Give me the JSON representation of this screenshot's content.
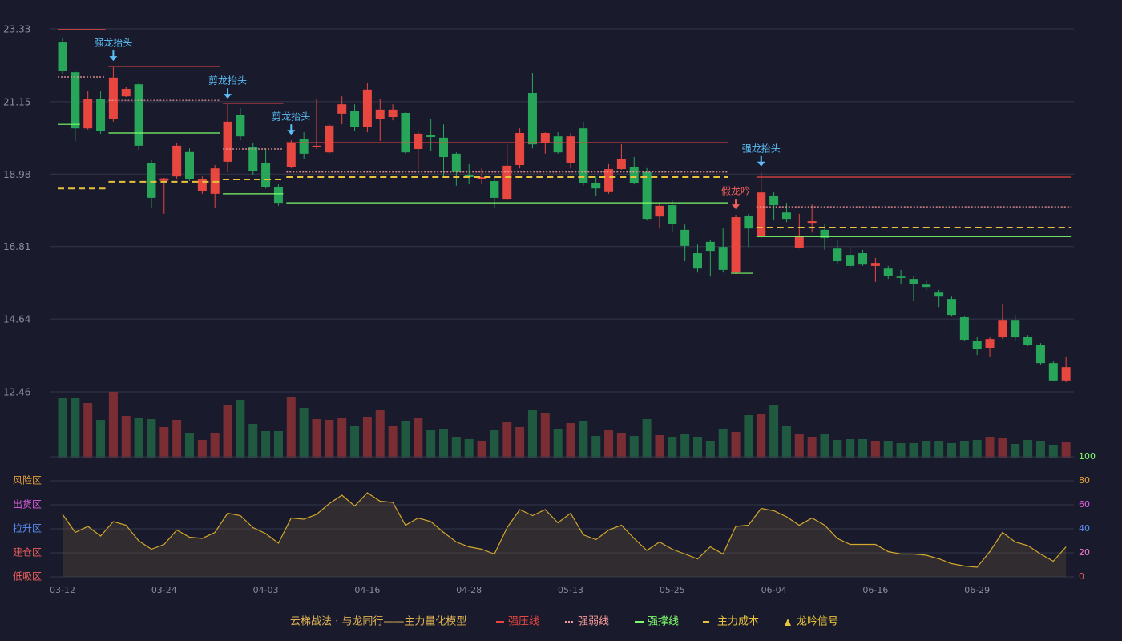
{
  "chart_data": [
    {
      "type": "candlestick",
      "categories": [
        "03-12",
        null,
        null,
        null,
        null,
        null,
        null,
        null,
        "03-24",
        null,
        null,
        null,
        null,
        null,
        null,
        null,
        "04-03",
        null,
        null,
        null,
        null,
        null,
        null,
        null,
        "04-16",
        null,
        null,
        null,
        null,
        null,
        null,
        null,
        "04-28",
        null,
        null,
        null,
        null,
        null,
        null,
        null,
        "05-13",
        null,
        null,
        null,
        null,
        null,
        null,
        null,
        "05-25",
        null,
        null,
        null,
        null,
        null,
        null,
        null,
        "06-04",
        null,
        null,
        null,
        null,
        null,
        null,
        null,
        "06-16",
        null,
        null,
        null,
        null,
        null,
        null,
        null,
        "06-29",
        null,
        null,
        null,
        null,
        null,
        null,
        null
      ],
      "open": [
        22.92,
        22.03,
        20.35,
        21.22,
        20.62,
        21.31,
        21.67,
        19.3,
        18.78,
        18.91,
        19.64,
        18.48,
        18.39,
        19.35,
        20.76,
        19.78,
        19.3,
        18.58,
        19.2,
        20.02,
        19.78,
        19.63,
        20.79,
        20.86,
        20.38,
        20.64,
        20.69,
        20.81,
        19.73,
        20.16,
        20.07,
        19.59,
        18.94,
        18.82,
        18.77,
        18.24,
        19.25,
        21.41,
        19.92,
        20.11,
        19.32,
        20.35,
        18.72,
        18.44,
        19.13,
        19.2,
        19.04,
        17.71,
        18.05,
        17.31,
        16.61,
        16.95,
        16.8,
        16.03,
        17.74,
        17.11,
        18.34,
        17.83,
        16.78,
        17.52,
        17.31,
        16.75,
        16.56,
        16.61,
        16.23,
        16.15,
        15.91,
        15.84,
        15.67,
        15.43,
        15.24,
        14.69,
        13.99,
        13.78,
        14.09,
        14.59,
        14.11,
        13.87,
        13.32,
        12.8
      ],
      "high": [
        23.07,
        22.05,
        21.48,
        21.48,
        22.2,
        21.6,
        21.7,
        19.4,
        18.87,
        19.92,
        19.75,
        18.91,
        19.25,
        21.07,
        20.95,
        19.92,
        19.75,
        18.67,
        19.99,
        20.23,
        21.24,
        20.47,
        21.31,
        21.07,
        21.7,
        21.22,
        21.07,
        20.83,
        20.28,
        20.64,
        20.47,
        19.63,
        19.28,
        19.15,
        18.91,
        19.87,
        20.35,
        22.01,
        20.23,
        20.23,
        20.21,
        20.55,
        18.91,
        19.28,
        19.87,
        19.49,
        19.16,
        18.12,
        18.19,
        17.47,
        16.87,
        17.0,
        17.35,
        17.76,
        17.79,
        19.04,
        18.43,
        18.12,
        17.79,
        18.07,
        17.47,
        16.99,
        16.8,
        16.71,
        16.47,
        16.23,
        16.11,
        15.91,
        15.79,
        15.51,
        15.31,
        14.74,
        14.11,
        14.11,
        15.07,
        14.76,
        14.16,
        13.92,
        13.37,
        13.51
      ],
      "low": [
        21.99,
        19.97,
        20.31,
        20.19,
        20.55,
        21.29,
        19.71,
        17.95,
        17.79,
        18.82,
        18.77,
        18.39,
        17.98,
        19.04,
        19.99,
        18.96,
        18.55,
        18.03,
        19.15,
        19.44,
        19.73,
        19.59,
        20.47,
        20.26,
        20.23,
        19.97,
        20.59,
        19.59,
        19.11,
        19.66,
        18.91,
        18.63,
        18.67,
        18.67,
        17.95,
        18.19,
        19.15,
        19.75,
        19.59,
        19.59,
        19.15,
        18.63,
        18.31,
        18.39,
        19.11,
        18.67,
        17.59,
        17.35,
        17.23,
        16.37,
        16.03,
        15.91,
        16.03,
        15.99,
        16.8,
        17.07,
        17.59,
        17.54,
        16.75,
        17.23,
        16.71,
        16.27,
        16.15,
        16.23,
        15.75,
        15.84,
        15.67,
        15.17,
        15.51,
        15.0,
        14.71,
        13.97,
        13.56,
        13.52,
        14.04,
        13.99,
        13.83,
        13.27,
        12.77,
        12.75
      ],
      "close": [
        22.08,
        20.35,
        21.22,
        20.26,
        21.87,
        21.53,
        19.83,
        18.27,
        18.85,
        19.83,
        18.84,
        18.82,
        19.15,
        20.55,
        20.11,
        19.06,
        18.6,
        18.12,
        19.92,
        19.59,
        19.83,
        20.43,
        21.07,
        20.38,
        21.51,
        20.91,
        20.91,
        19.63,
        20.19,
        20.09,
        19.49,
        19.04,
        18.89,
        18.89,
        18.27,
        19.23,
        20.21,
        19.87,
        20.21,
        19.63,
        20.11,
        18.72,
        18.55,
        19.13,
        19.44,
        18.72,
        17.64,
        18.03,
        17.5,
        16.83,
        16.15,
        16.68,
        16.11,
        17.69,
        17.35,
        18.43,
        18.05,
        17.64,
        17.14,
        17.57,
        17.07,
        16.37,
        16.23,
        16.27,
        16.32,
        15.94,
        15.87,
        15.7,
        15.6,
        15.31,
        14.76,
        14.02,
        13.75,
        14.04,
        14.59,
        14.09,
        13.87,
        13.32,
        12.8,
        13.2
      ],
      "up_color": "#e8473f",
      "down_color": "#27a65a",
      "ylim": [
        12.46,
        23.33
      ],
      "yticks": [
        12.46,
        14.64,
        16.81,
        18.98,
        21.15,
        23.33
      ],
      "grid": true,
      "series": [
        {
          "name": "强压线",
          "color": "#e8473f",
          "dash": "solid",
          "segments": [
            {
              "start": 0,
              "end": 3,
              "value": 23.31
            },
            {
              "start": 4,
              "end": 12,
              "value": 22.2
            },
            {
              "start": 13,
              "end": 17,
              "value": 21.1
            },
            {
              "start": 18,
              "end": 52,
              "value": 19.92
            },
            {
              "start": 55,
              "end": 79,
              "value": 18.89
            }
          ]
        },
        {
          "name": "强弱线",
          "color": "#f59a9a",
          "dash": "dotted",
          "segments": [
            {
              "start": 0,
              "end": 3,
              "value": 21.89
            },
            {
              "start": 4,
              "end": 12,
              "value": 21.19
            },
            {
              "start": 13,
              "end": 17,
              "value": 19.73
            },
            {
              "start": 18,
              "end": 52,
              "value": 19.04
            },
            {
              "start": 55,
              "end": 79,
              "value": 18.0
            }
          ]
        },
        {
          "name": "强撑线",
          "color": "#7cfc6a",
          "dash": "solid",
          "segments": [
            {
              "start": 0,
              "end": 1,
              "value": 20.47
            },
            {
              "start": 4,
              "end": 12,
              "value": 20.21
            },
            {
              "start": 13,
              "end": 17,
              "value": 18.39
            },
            {
              "start": 18,
              "end": 52,
              "value": 18.12
            },
            {
              "start": 53,
              "end": 54,
              "value": 16.01
            },
            {
              "start": 55,
              "end": 79,
              "value": 17.11
            }
          ]
        },
        {
          "name": "主力成本",
          "color": "#e8c23a",
          "dash": "dashed",
          "segments": [
            {
              "start": 0,
              "end": 3,
              "value": 18.55
            },
            {
              "start": 4,
              "end": 12,
              "value": 18.75
            },
            {
              "start": 13,
              "end": 17,
              "value": 18.82
            },
            {
              "start": 18,
              "end": 52,
              "value": 18.89
            },
            {
              "start": 55,
              "end": 79,
              "value": 17.38
            }
          ]
        }
      ],
      "annotations": [
        {
          "index": 4,
          "label": "强龙抬头",
          "color": "#5bc0f8"
        },
        {
          "index": 13,
          "label": "剪龙抬头",
          "color": "#5bc0f8"
        },
        {
          "index": 18,
          "label": "剪龙抬头",
          "color": "#5bc0f8"
        },
        {
          "index": 53,
          "label": "假龙吟",
          "color": "#f0605a"
        },
        {
          "index": 55,
          "label": "强龙抬头",
          "color": "#5bc0f8"
        }
      ],
      "legend_title": "云梯战法 · 与龙同行——主力量化模型",
      "legend_title_color": "#e0b454",
      "signal_legend": "龙吟信号",
      "signal_color": "#e8c23a"
    },
    {
      "type": "bar",
      "values": [
        74,
        74,
        68,
        47,
        82,
        52,
        49,
        48,
        38,
        47,
        30,
        22,
        30,
        65,
        72,
        42,
        33,
        33,
        75,
        62,
        48,
        47,
        49,
        39,
        51,
        59,
        39,
        46,
        49,
        34,
        36,
        26,
        23,
        21,
        34,
        44,
        38,
        59,
        56,
        36,
        43,
        45,
        27,
        34,
        30,
        27,
        48,
        28,
        26,
        29,
        25,
        20,
        35,
        32,
        53,
        54,
        65,
        39,
        29,
        26,
        29,
        22,
        23,
        23,
        20,
        21,
        18,
        18,
        21,
        21,
        18,
        21,
        22,
        25,
        24,
        17,
        22,
        21,
        16,
        19
      ],
      "up_color": "#7a2d33",
      "down_color": "#1f5a40",
      "ylim": [
        0,
        82
      ]
    },
    {
      "type": "area",
      "values": [
        52,
        37,
        42,
        34,
        46,
        43,
        30,
        23,
        27,
        39,
        33,
        32,
        37,
        53,
        51,
        41,
        36,
        28,
        49,
        48,
        52,
        61,
        68,
        59,
        70,
        63,
        62,
        43,
        49,
        46,
        37,
        29,
        25,
        23,
        19,
        41,
        56,
        51,
        56,
        45,
        53,
        35,
        31,
        39,
        43,
        32,
        22,
        29,
        23,
        19,
        15,
        25,
        19,
        42,
        43,
        57,
        55,
        50,
        43,
        49,
        43,
        32,
        27,
        27,
        27,
        21,
        19,
        19,
        18,
        15,
        11,
        9,
        8,
        21,
        37,
        29,
        26,
        19,
        13,
        25
      ],
      "color": "#d4a82a",
      "fill": "rgba(120,100,60,0.25)",
      "ylim": [
        0,
        100
      ],
      "yticks": [
        0,
        20,
        40,
        60,
        80,
        100
      ],
      "tick_colors": [
        "#f0605a",
        "#f07ad0",
        "#5b8ff8",
        "#e060e0",
        "#e8a23a",
        "#7cfc6a"
      ],
      "zone_labels": [
        "低吸区",
        "建仓区",
        "拉升区",
        "出货区",
        "风险区"
      ],
      "zone_colors": [
        "#f0605a",
        "#f0605a",
        "#5b8ff8",
        "#e060e0",
        "#e8a23a"
      ],
      "grid": true
    }
  ]
}
